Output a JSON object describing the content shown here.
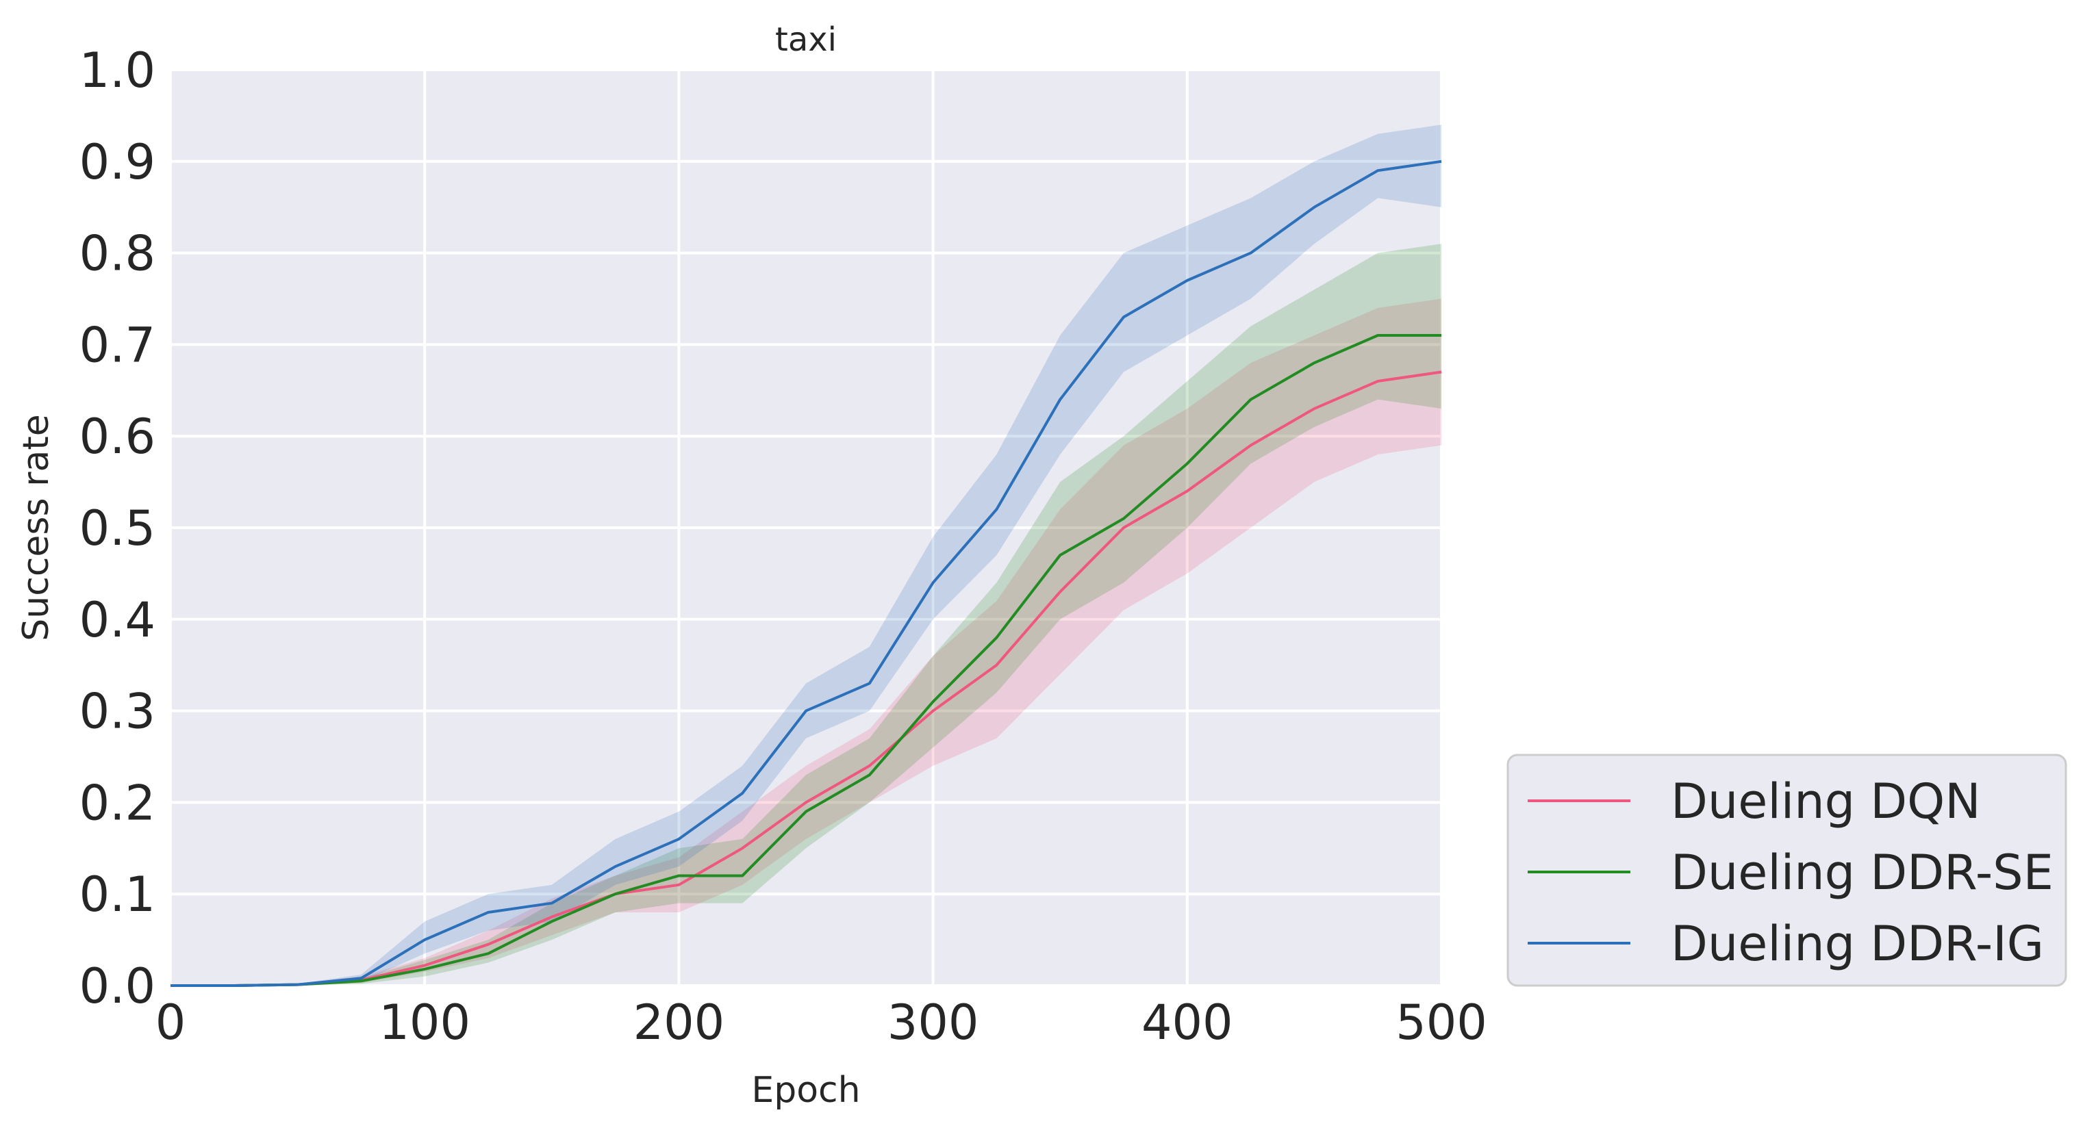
{
  "chart_data": {
    "type": "line",
    "title": "taxi",
    "xlabel": "Epoch",
    "ylabel": "Success rate",
    "xlim": [
      0,
      500
    ],
    "ylim": [
      0.0,
      1.0
    ],
    "xticks": [
      "0",
      "100",
      "200",
      "300",
      "400",
      "500"
    ],
    "yticks": [
      "0.0",
      "0.1",
      "0.2",
      "0.3",
      "0.4",
      "0.5",
      "0.6",
      "0.7",
      "0.8",
      "0.9",
      "1.0"
    ],
    "grid": true,
    "legend_position": "outside-lower-right",
    "background_color": "#eaeaf2",
    "x": [
      0,
      25,
      50,
      75,
      100,
      125,
      150,
      175,
      200,
      225,
      250,
      275,
      300,
      325,
      350,
      375,
      400,
      425,
      450,
      475,
      500
    ],
    "series": [
      {
        "name": "Dueling DQN",
        "color": "#f0577f",
        "values": [
          0,
          0,
          0.001,
          0.006,
          0.022,
          0.045,
          0.075,
          0.1,
          0.11,
          0.15,
          0.2,
          0.24,
          0.3,
          0.35,
          0.43,
          0.5,
          0.54,
          0.59,
          0.63,
          0.66,
          0.67
        ],
        "lower": [
          0,
          0,
          0.0,
          0.003,
          0.015,
          0.03,
          0.055,
          0.08,
          0.08,
          0.11,
          0.16,
          0.2,
          0.24,
          0.27,
          0.34,
          0.41,
          0.45,
          0.5,
          0.55,
          0.58,
          0.59
        ],
        "upper": [
          0,
          0,
          0.002,
          0.01,
          0.03,
          0.06,
          0.095,
          0.12,
          0.14,
          0.19,
          0.24,
          0.28,
          0.36,
          0.42,
          0.52,
          0.59,
          0.63,
          0.68,
          0.71,
          0.74,
          0.75
        ]
      },
      {
        "name": "Dueling DDR-SE",
        "color": "#228b22",
        "values": [
          0,
          0,
          0.001,
          0.005,
          0.018,
          0.035,
          0.07,
          0.1,
          0.12,
          0.12,
          0.19,
          0.23,
          0.31,
          0.38,
          0.47,
          0.51,
          0.57,
          0.64,
          0.68,
          0.71,
          0.71
        ],
        "lower": [
          0,
          0,
          0.0,
          0.002,
          0.01,
          0.025,
          0.05,
          0.08,
          0.09,
          0.09,
          0.15,
          0.2,
          0.26,
          0.32,
          0.4,
          0.44,
          0.5,
          0.57,
          0.61,
          0.64,
          0.63
        ],
        "upper": [
          0,
          0,
          0.002,
          0.008,
          0.028,
          0.05,
          0.09,
          0.12,
          0.15,
          0.16,
          0.23,
          0.27,
          0.36,
          0.44,
          0.55,
          0.6,
          0.66,
          0.72,
          0.76,
          0.8,
          0.81
        ]
      },
      {
        "name": "Dueling DDR-IG",
        "color": "#2c70ba",
        "values": [
          0,
          0,
          0.001,
          0.008,
          0.05,
          0.08,
          0.09,
          0.13,
          0.16,
          0.21,
          0.3,
          0.33,
          0.44,
          0.52,
          0.64,
          0.73,
          0.77,
          0.8,
          0.85,
          0.89,
          0.9
        ],
        "lower": [
          0,
          0,
          0.0,
          0.004,
          0.035,
          0.06,
          0.07,
          0.11,
          0.13,
          0.18,
          0.27,
          0.3,
          0.4,
          0.47,
          0.58,
          0.67,
          0.71,
          0.75,
          0.81,
          0.86,
          0.85
        ],
        "upper": [
          0,
          0,
          0.002,
          0.012,
          0.07,
          0.1,
          0.11,
          0.16,
          0.19,
          0.24,
          0.33,
          0.37,
          0.49,
          0.58,
          0.71,
          0.8,
          0.83,
          0.86,
          0.9,
          0.93,
          0.94
        ]
      }
    ]
  }
}
